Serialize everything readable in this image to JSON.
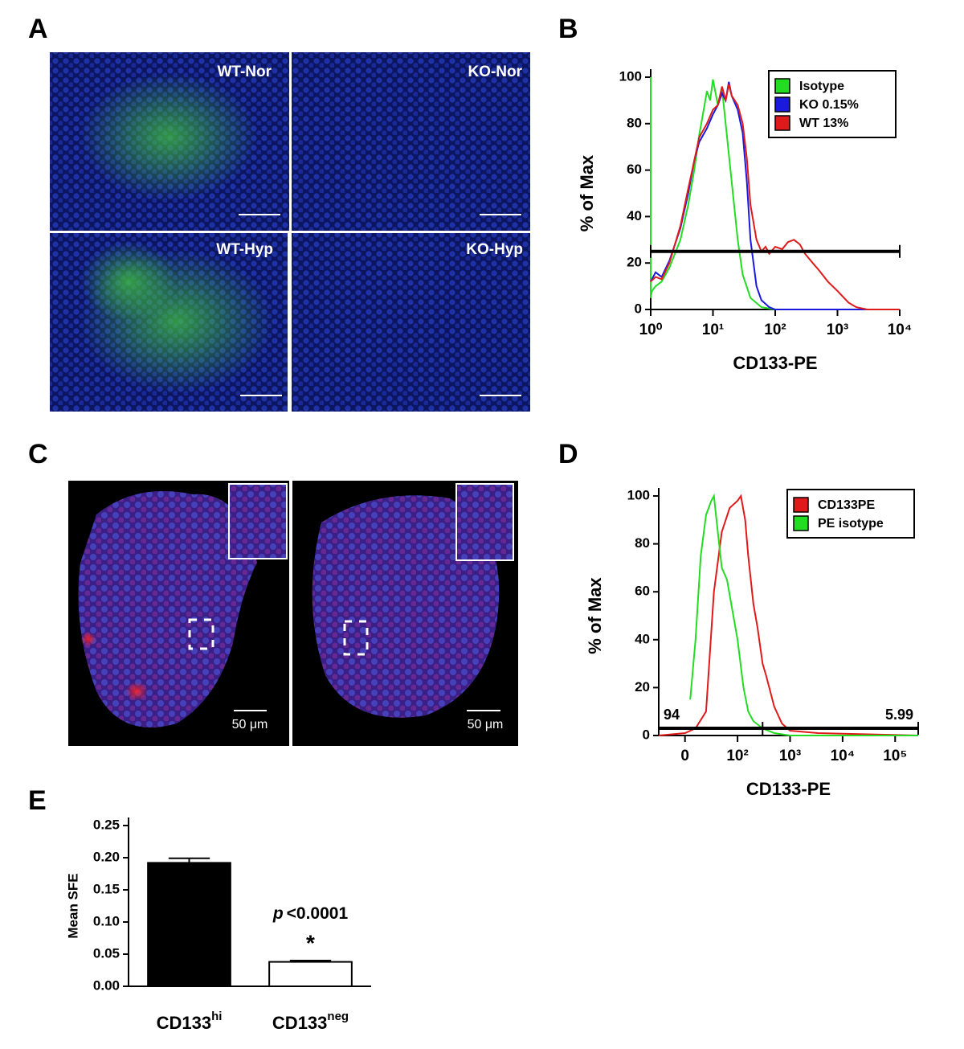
{
  "panel_labels": [
    "A",
    "B",
    "C",
    "D",
    "E"
  ],
  "panel_a": {
    "labels": [
      "WT-Nor",
      "KO-Nor",
      "WT-Hyp",
      "KO-Hyp"
    ]
  },
  "panel_c": {
    "scale_labels": [
      "50 μm",
      "50 μm"
    ]
  },
  "chart_data": [
    {
      "type": "line",
      "xscale": "log",
      "xlim": [
        1,
        10000
      ],
      "ylim": [
        0,
        100
      ],
      "xticks": [
        {
          "value": 1,
          "label": "10⁰"
        },
        {
          "value": 10,
          "label": "10¹"
        },
        {
          "value": 100,
          "label": "10²"
        },
        {
          "value": 1000,
          "label": "10³"
        },
        {
          "value": 10000,
          "label": "10⁴"
        }
      ],
      "yticks": [
        0,
        20,
        40,
        60,
        80,
        100
      ],
      "xlabel": "CD133-PE",
      "ylabel": "% of Max",
      "legend": "upper right",
      "gate": {
        "x": [
          1,
          10000
        ],
        "y": 25
      },
      "series": [
        {
          "name": "Isotype",
          "color": "#22dd22",
          "x": [
            1,
            1,
            1.05,
            1.2,
            1.5,
            2,
            3,
            4,
            5,
            6,
            7,
            8,
            9,
            10,
            12,
            14,
            16,
            20,
            25,
            30,
            40,
            60,
            100,
            1000,
            10000
          ],
          "values": [
            100,
            5,
            8,
            10,
            12,
            18,
            30,
            45,
            60,
            75,
            85,
            94,
            90,
            99,
            88,
            95,
            80,
            55,
            30,
            15,
            5,
            1,
            0,
            0,
            0
          ]
        },
        {
          "name": "KO 0.15%",
          "color": "#1a1adf",
          "x": [
            1,
            1.2,
            1.5,
            2,
            3,
            4,
            5,
            6,
            8,
            10,
            12,
            14,
            16,
            18,
            20,
            25,
            30,
            35,
            40,
            50,
            60,
            80,
            100,
            1000,
            10000
          ],
          "values": [
            12,
            16,
            14,
            21,
            35,
            50,
            64,
            72,
            78,
            84,
            88,
            93,
            90,
            98,
            92,
            86,
            76,
            55,
            30,
            10,
            4,
            1,
            0,
            0,
            0
          ]
        },
        {
          "name": "WT 13%",
          "color": "#e01a1a",
          "x": [
            1,
            1.2,
            1.5,
            2,
            3,
            4,
            5,
            6,
            8,
            10,
            12,
            14,
            16,
            18,
            20,
            25,
            30,
            35,
            40,
            50,
            60,
            70,
            80,
            100,
            130,
            160,
            200,
            250,
            300,
            400,
            500,
            700,
            1000,
            1500,
            2000,
            3000,
            10000
          ],
          "values": [
            12,
            14,
            13,
            20,
            36,
            52,
            64,
            74,
            80,
            86,
            88,
            96,
            90,
            97,
            92,
            88,
            80,
            65,
            45,
            30,
            25,
            27,
            24,
            27,
            26,
            29,
            30,
            28,
            24,
            20,
            17,
            12,
            8,
            3,
            1,
            0,
            0
          ]
        }
      ]
    },
    {
      "type": "line",
      "xscale": "logicle",
      "xlim": [
        -50,
        275000
      ],
      "ylim": [
        0,
        100
      ],
      "xticks": [
        0,
        {
          "value": 100,
          "label": "10²"
        },
        {
          "value": 1000,
          "label": "10³"
        },
        {
          "value": 10000,
          "label": "10⁴"
        },
        {
          "value": 100000,
          "label": "10⁵"
        }
      ],
      "yticks": [
        0,
        20,
        40,
        60,
        80,
        100
      ],
      "xlabel": "CD133-PE",
      "ylabel": "% of Max",
      "legend": "upper right",
      "gate": {
        "x": [
          -50,
          300,
          275000
        ],
        "y": 3,
        "labels": [
          "94",
          "5.99"
        ]
      },
      "series": [
        {
          "name": "CD133PE",
          "color": "#e01a1a",
          "x": [
            -50,
            0,
            20,
            40,
            55,
            70,
            85,
            100,
            116,
            140,
            160,
            200,
            240,
            300,
            350,
            500,
            700,
            1000,
            3400,
            275000
          ],
          "values": [
            0,
            1,
            3,
            10,
            60,
            85,
            95,
            98,
            100,
            90,
            75,
            55,
            45,
            30,
            25,
            12,
            5,
            2,
            1,
            0
          ]
        },
        {
          "name": "PE isotype",
          "color": "#22dd22",
          "x": [
            10,
            20,
            30,
            40,
            50,
            55,
            60,
            70,
            80,
            100,
            130,
            160,
            200,
            300,
            500,
            1000,
            275000
          ],
          "values": [
            15,
            40,
            75,
            92,
            98,
            100,
            90,
            70,
            65,
            40,
            20,
            10,
            6,
            3,
            1,
            0,
            0
          ]
        }
      ]
    },
    {
      "type": "bar",
      "ylim": [
        0,
        0.25
      ],
      "yticks": [
        {
          "value": 0,
          "label": "0.00"
        },
        {
          "value": 0.05,
          "label": "0.05"
        },
        {
          "value": 0.1,
          "label": "0.10"
        },
        {
          "value": 0.15,
          "label": "0.15"
        },
        {
          "value": 0.2,
          "label": "0.20"
        },
        {
          "value": 0.25,
          "label": "0.25"
        }
      ],
      "ylabel": "Mean SFE",
      "categories": [
        {
          "text": "CD133",
          "sup": "hi"
        },
        {
          "text": "CD133",
          "sup": "neg"
        }
      ],
      "values": [
        0.192,
        0.038
      ],
      "errors": [
        0.007,
        0.002
      ],
      "colors": [
        "#000000",
        "#ffffff"
      ],
      "annotation": {
        "italic": "p",
        "text": "<0.0001"
      },
      "marker": "*"
    }
  ]
}
